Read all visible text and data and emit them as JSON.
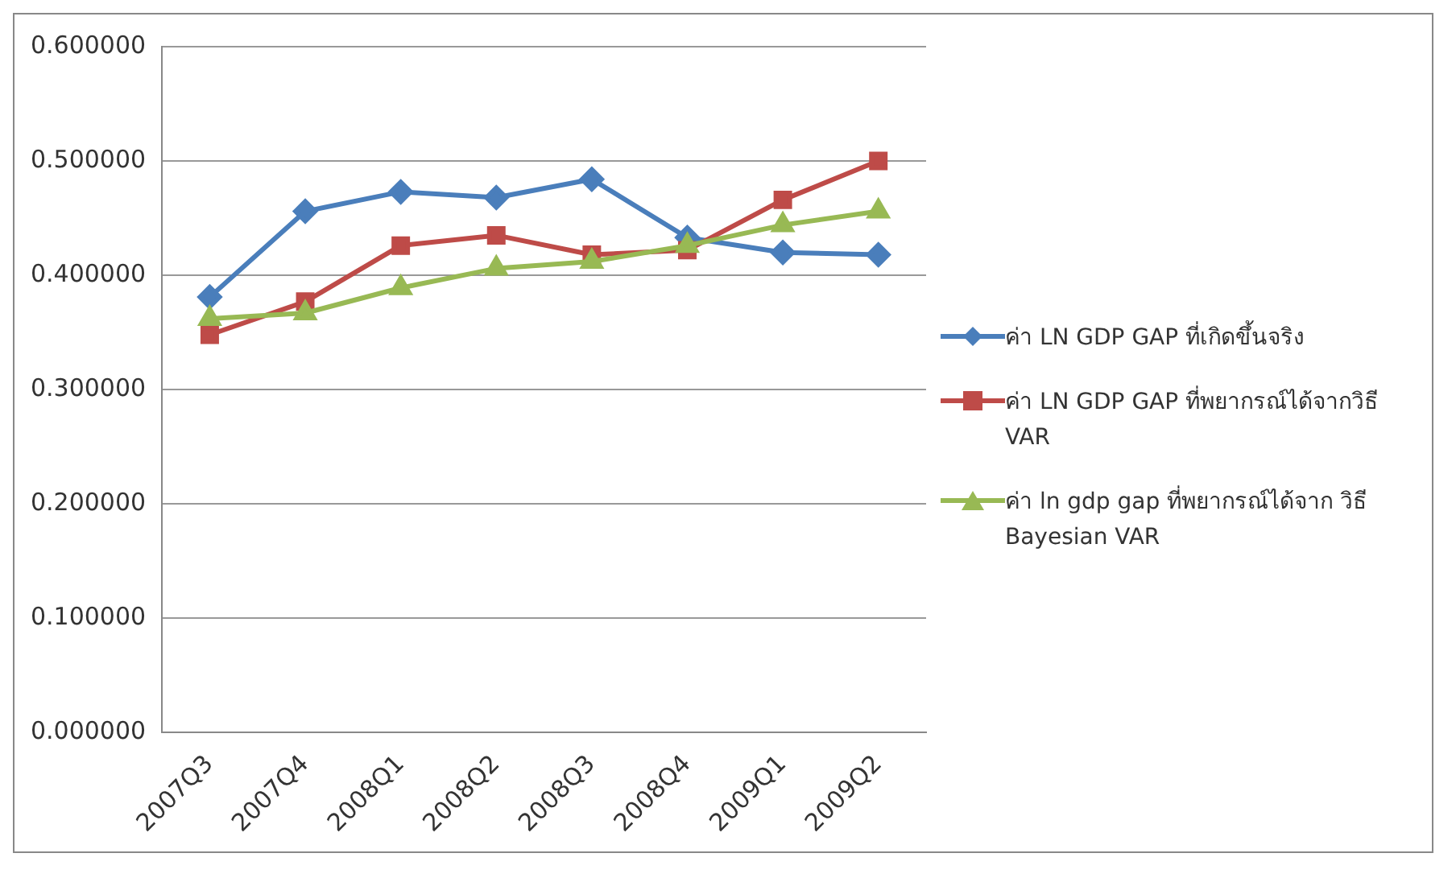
{
  "chart_data": {
    "type": "line",
    "categories": [
      "2007Q3",
      "2007Q4",
      "2008Q1",
      "2008Q2",
      "2008Q3",
      "2008Q4",
      "2009Q1",
      "2009Q2"
    ],
    "series": [
      {
        "name": "ค่า LN GDP GAP ที่เกิดขึ้นจริง",
        "color": "#4a7ebb",
        "marker": "diamond",
        "values": [
          0.381,
          0.456,
          0.473,
          0.468,
          0.484,
          0.433,
          0.42,
          0.418
        ]
      },
      {
        "name": "ค่า LN GDP GAP ที่พยากรณ์ได้จากวิธี VAR",
        "color": "#be4b48",
        "marker": "square",
        "values": [
          0.348,
          0.377,
          0.426,
          0.435,
          0.418,
          0.422,
          0.466,
          0.5
        ]
      },
      {
        "name": "ค่า ln gdp gap ที่พยากรณ์ได้จาก วิธี Bayesian VAR",
        "color": "#98b954",
        "marker": "triangle",
        "values": [
          0.362,
          0.367,
          0.389,
          0.406,
          0.412,
          0.426,
          0.444,
          0.456
        ]
      }
    ],
    "ylim": [
      0,
      0.6
    ],
    "yticks": [
      {
        "value": 0,
        "label": "0.000000"
      },
      {
        "value": 0.1,
        "label": "0.100000"
      },
      {
        "value": 0.2,
        "label": "0.200000"
      },
      {
        "value": 0.3,
        "label": "0.300000"
      },
      {
        "value": 0.4,
        "label": "0.400000"
      },
      {
        "value": 0.5,
        "label": "0.500000"
      },
      {
        "value": 0.6,
        "label": "0.600000"
      }
    ],
    "grid": "y",
    "legend": "right",
    "line_style": "solid"
  }
}
